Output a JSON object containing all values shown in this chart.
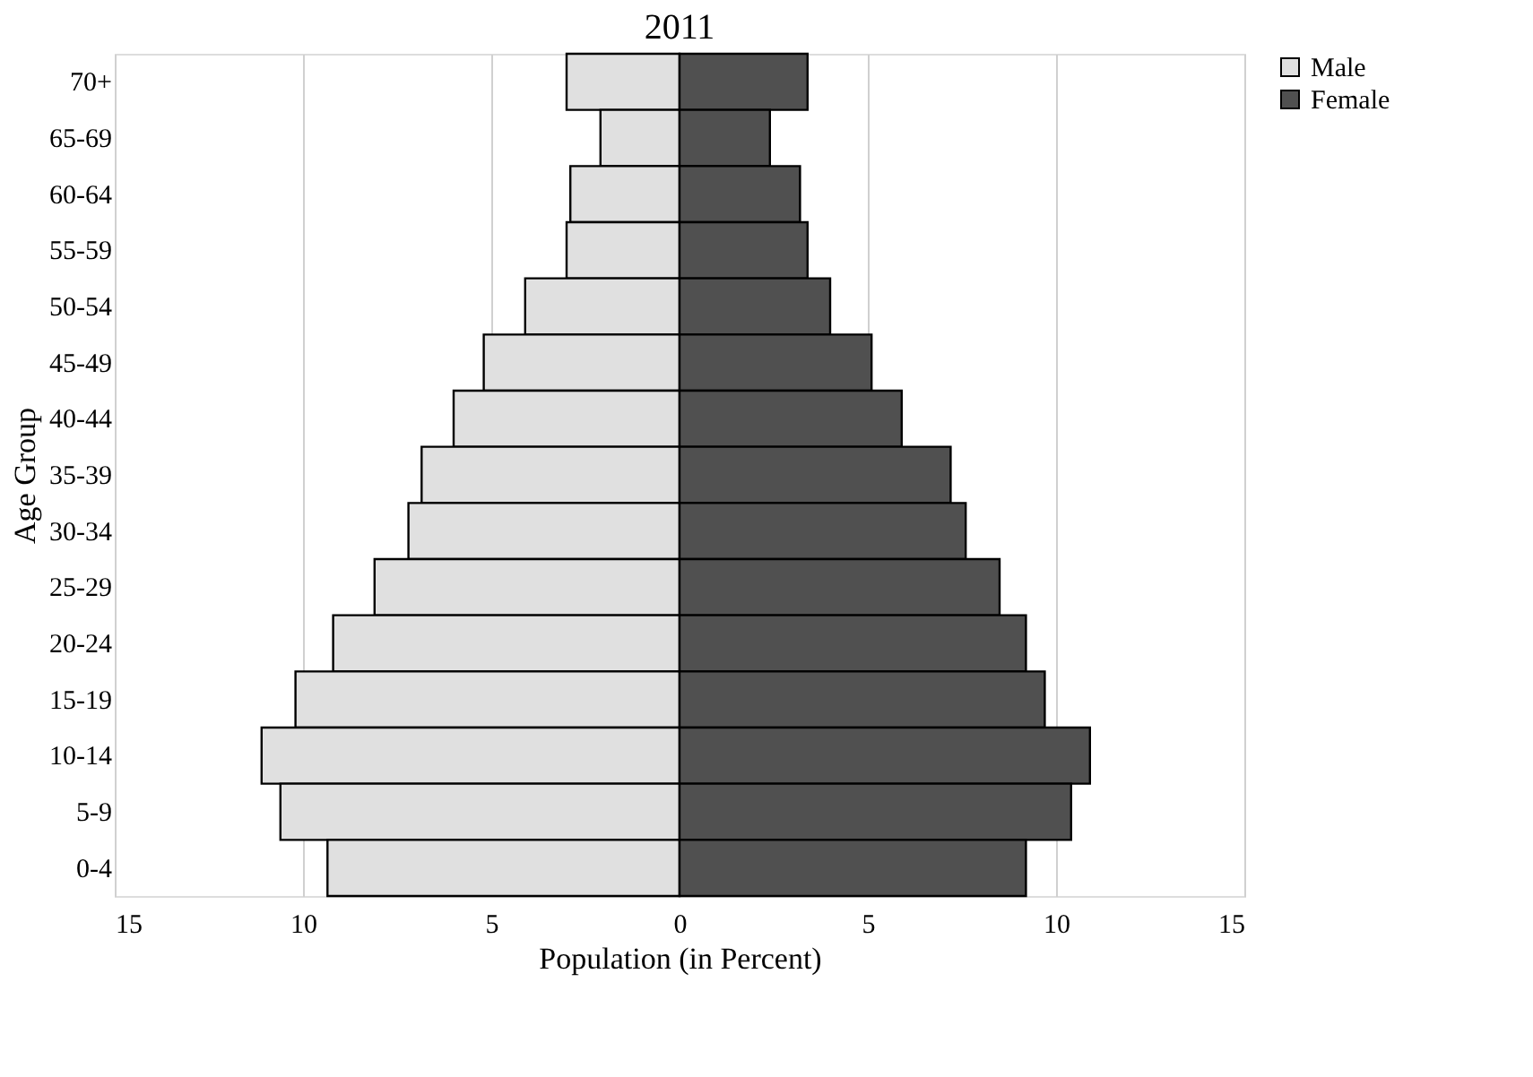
{
  "chart_data": {
    "type": "bar",
    "title": "2011",
    "xlabel": "Population (in Percent)",
    "ylabel": "Age Group",
    "orientation": "horizontal",
    "categories": [
      "70+",
      "65-69",
      "60-64",
      "55-59",
      "50-54",
      "45-49",
      "40-44",
      "35-39",
      "30-34",
      "25-29",
      "20-24",
      "15-19",
      "10-14",
      "5-9",
      "0-4"
    ],
    "series": [
      {
        "name": "Male",
        "color": "#e0e0e0",
        "values": [
          -3.0,
          -2.1,
          -2.9,
          -3.0,
          -4.1,
          -5.2,
          -6.0,
          -6.85,
          -7.2,
          -8.1,
          -9.2,
          -10.2,
          -11.1,
          -10.6,
          -9.35
        ]
      },
      {
        "name": "Female",
        "color": "#505050",
        "values": [
          3.4,
          2.4,
          3.2,
          3.4,
          4.0,
          5.1,
          5.9,
          7.2,
          7.6,
          8.5,
          9.2,
          9.7,
          10.9,
          10.4,
          9.2
        ]
      }
    ],
    "xlim": [
      -15,
      15
    ],
    "xticks": [
      {
        "value": -15,
        "label": "15"
      },
      {
        "value": -10,
        "label": "10"
      },
      {
        "value": -5,
        "label": "5"
      },
      0,
      5,
      10,
      15
    ],
    "grid": "x",
    "legend": "right",
    "stacked": true
  }
}
